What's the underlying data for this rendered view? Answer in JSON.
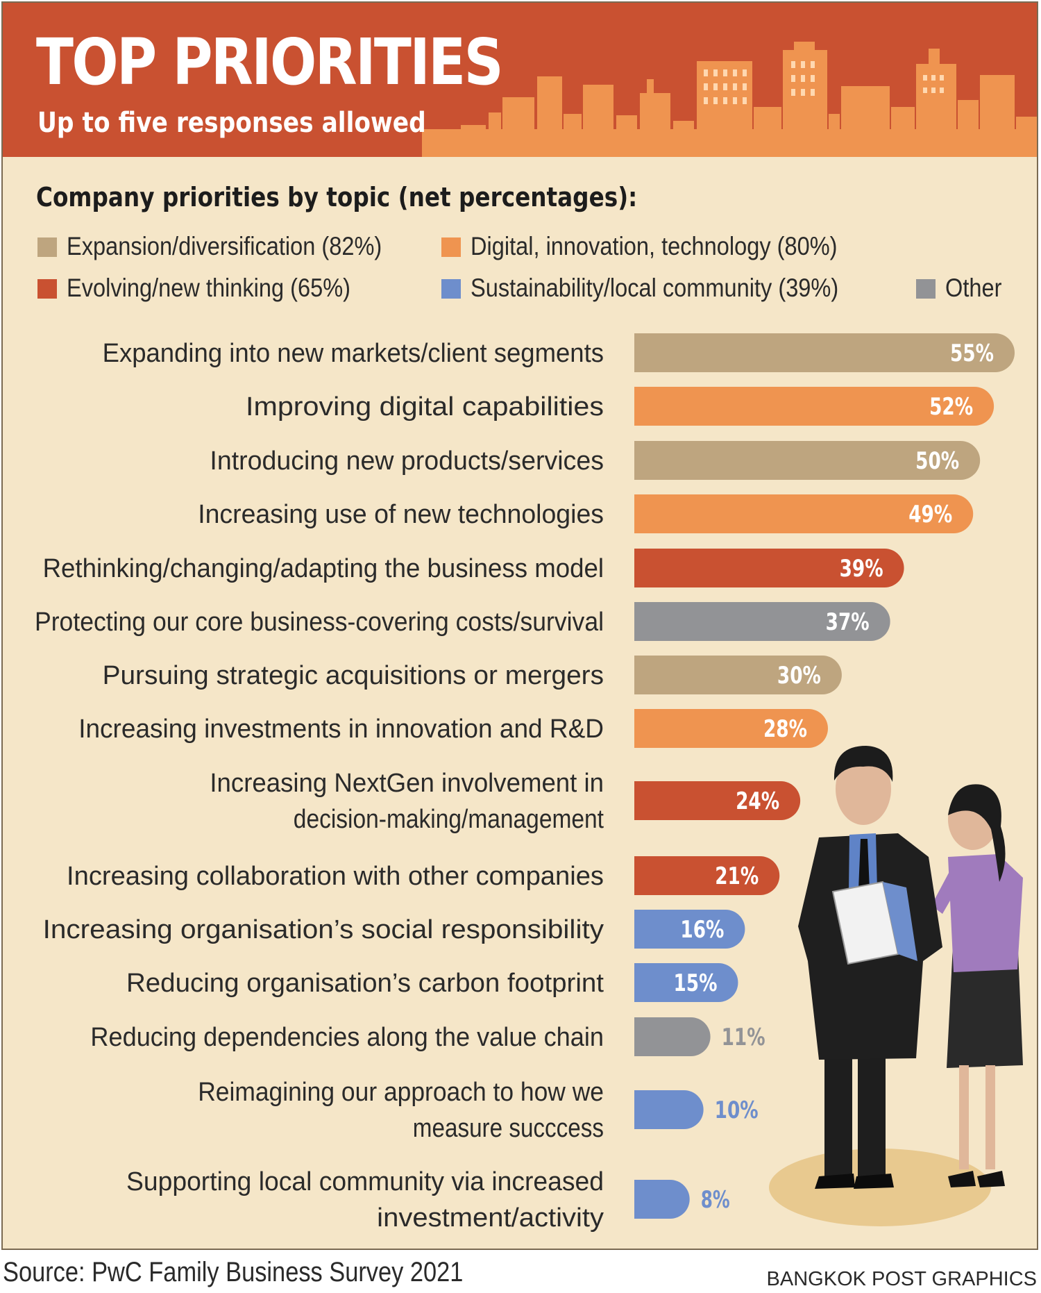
{
  "header": {
    "title": "TOP PRIORITIES",
    "subtitle": "Up to five responses allowed"
  },
  "colors": {
    "header_bg": "#c95131",
    "panel_bg": "#f5e6c8",
    "skyline": "#ef9450"
  },
  "legend": {
    "heading": "Company priorities by topic (net percentages):",
    "items": [
      {
        "label": "Expansion/diversification (82%)",
        "color": "#bea57f"
      },
      {
        "label": "Digital, innovation, technology (80%)",
        "color": "#ef9450"
      },
      {
        "label": "Evolving/new thinking (65%)",
        "color": "#c95131"
      },
      {
        "label": "Sustainability/local community (39%)",
        "color": "#6e8ecc"
      },
      {
        "label": "Other",
        "color": "#929396"
      }
    ]
  },
  "chart_data": {
    "type": "bar",
    "orientation": "horizontal",
    "title": "Company priorities by topic (net percentages):",
    "unit": "%",
    "categories": [
      [
        "Expanding into new markets/client segments"
      ],
      [
        "Improving digital capabilities"
      ],
      [
        "Introducing new products/services"
      ],
      [
        "Increasing use of new technologies"
      ],
      [
        "Rethinking/changing/adapting the business model"
      ],
      [
        "Protecting our core business-covering costs/survival"
      ],
      [
        "Pursuing strategic acquisitions or mergers"
      ],
      [
        "Increasing investments in innovation and R&D"
      ],
      [
        "Increasing NextGen involvement in",
        "decision-making/management"
      ],
      [
        "Increasing collaboration with other companies"
      ],
      [
        "Increasing organisation’s social responsibility"
      ],
      [
        "Reducing organisation’s carbon footprint"
      ],
      [
        "Reducing dependencies along the value chain"
      ],
      [
        "Reimagining our approach to how we",
        "measure succcess"
      ],
      [
        "Supporting local community via increased",
        "investment/activity"
      ]
    ],
    "values": [
      55,
      52,
      50,
      49,
      39,
      37,
      30,
      28,
      24,
      21,
      16,
      15,
      11,
      10,
      8
    ],
    "value_labels": [
      "55%",
      "52%",
      "50%",
      "49%",
      "39%",
      "37%",
      "30%",
      "28%",
      "24%",
      "21%",
      "16%",
      "15%",
      "11%",
      "10%",
      "8%"
    ],
    "topic": [
      0,
      1,
      0,
      1,
      2,
      4,
      0,
      1,
      2,
      2,
      3,
      3,
      4,
      3,
      3
    ],
    "xlim": [
      0,
      55
    ],
    "grid": false,
    "legend_position": "top"
  },
  "footer": {
    "source": "Source: PwC Family Business Survey 2021",
    "credit": "BANGKOK POST GRAPHICS"
  }
}
